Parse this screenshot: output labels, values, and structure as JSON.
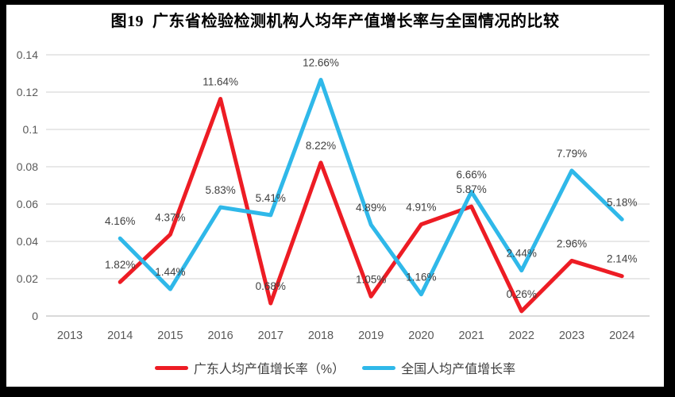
{
  "chart_data": {
    "type": "line",
    "title": "图19  广东省检验检测机构人均年产值增长率与全国情况的比较",
    "categories": [
      "2013",
      "2014",
      "2015",
      "2016",
      "2017",
      "2018",
      "2019",
      "2020",
      "2021",
      "2022",
      "2023",
      "2024"
    ],
    "y_axis": {
      "min": 0,
      "max": 0.14,
      "ticks": [
        "0",
        "0.02",
        "0.04",
        "0.06",
        "0.08",
        "0.1",
        "0.12",
        "0.14"
      ]
    },
    "grid": true,
    "legend_position": "bottom",
    "series": [
      {
        "name": "广东人均产值增长率（%）",
        "color": "#ED1C24",
        "values_pct": [
          null,
          1.82,
          4.37,
          11.64,
          0.68,
          8.22,
          1.05,
          4.91,
          5.87,
          0.26,
          2.96,
          2.14
        ],
        "labels": [
          "",
          "1.82%",
          "4.37%",
          "11.64%",
          "0.68%",
          "8.22%",
          "1.05%",
          "4.91%",
          "5.87%",
          "0.26%",
          "2.96%",
          "2.14%"
        ]
      },
      {
        "name": "全国人均产值增长率",
        "color": "#2FB8E9",
        "values_pct": [
          null,
          4.16,
          1.44,
          5.83,
          5.41,
          12.66,
          4.89,
          1.16,
          6.66,
          2.44,
          7.79,
          5.18
        ],
        "labels": [
          "",
          "4.16%",
          "1.44%",
          "5.83%",
          "5.41%",
          "12.66%",
          "4.89%",
          "1.16%",
          "6.66%",
          "2.44%",
          "7.79%",
          "5.18%"
        ]
      }
    ],
    "colors": {
      "gridline": "#D9D9D9",
      "axis_line": "#C2C2C2",
      "tick_label": "#595959",
      "data_label": "#404040"
    }
  }
}
